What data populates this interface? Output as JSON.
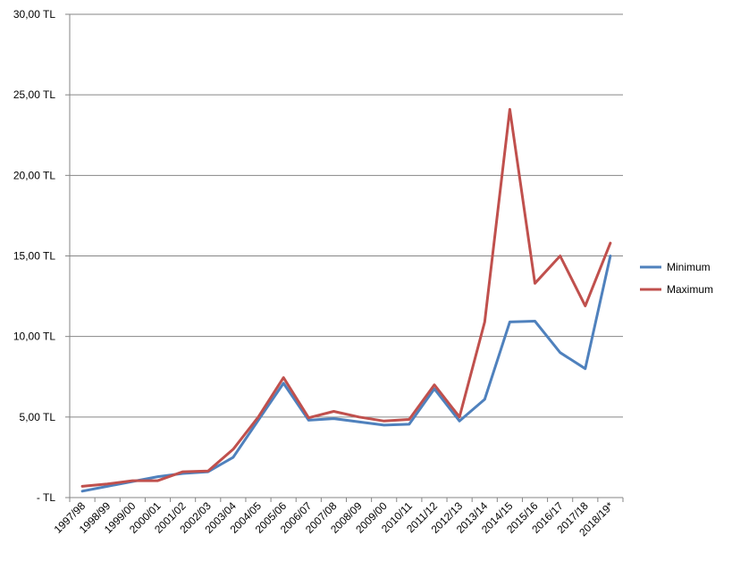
{
  "chart_data": {
    "type": "line",
    "categories": [
      "1997/98",
      "1998/99",
      "1999/00",
      "2000/01",
      "2001/02",
      "2002/03",
      "2003/04",
      "2004/05",
      "2005/06",
      "2006/07",
      "2007/08",
      "2008/09",
      "2009/00",
      "2010/11",
      "2011/12",
      "2012/13",
      "2013/14",
      "2014/15",
      "2015/16",
      "2016/17",
      "2017/18",
      "2018/19*"
    ],
    "series": [
      {
        "name": "Minimum",
        "color": "#4F81BD",
        "values": [
          0.4,
          0.7,
          1.0,
          1.3,
          1.5,
          1.6,
          2.5,
          4.8,
          7.1,
          4.8,
          4.9,
          4.7,
          4.5,
          4.55,
          6.75,
          4.75,
          6.1,
          10.9,
          10.95,
          9.0,
          8.0,
          15.0
        ]
      },
      {
        "name": "Maximum",
        "color": "#C0504D",
        "values": [
          0.7,
          0.85,
          1.05,
          1.05,
          1.6,
          1.65,
          3.0,
          5.0,
          7.45,
          4.95,
          5.35,
          5.0,
          4.75,
          4.85,
          7.0,
          5.0,
          10.9,
          24.1,
          13.3,
          15.0,
          11.9,
          15.8
        ]
      }
    ],
    "y_ticks": [
      {
        "value": 0,
        "label": "-   TL"
      },
      {
        "value": 5,
        "label": "5,00 TL"
      },
      {
        "value": 10,
        "label": "10,00 TL"
      },
      {
        "value": 15,
        "label": "15,00 TL"
      },
      {
        "value": 20,
        "label": "20,00 TL"
      },
      {
        "value": 25,
        "label": "25,00 TL"
      },
      {
        "value": 30,
        "label": "30,00 TL"
      }
    ],
    "ylim": [
      0,
      30
    ],
    "grid": true,
    "legend_position": "right"
  }
}
